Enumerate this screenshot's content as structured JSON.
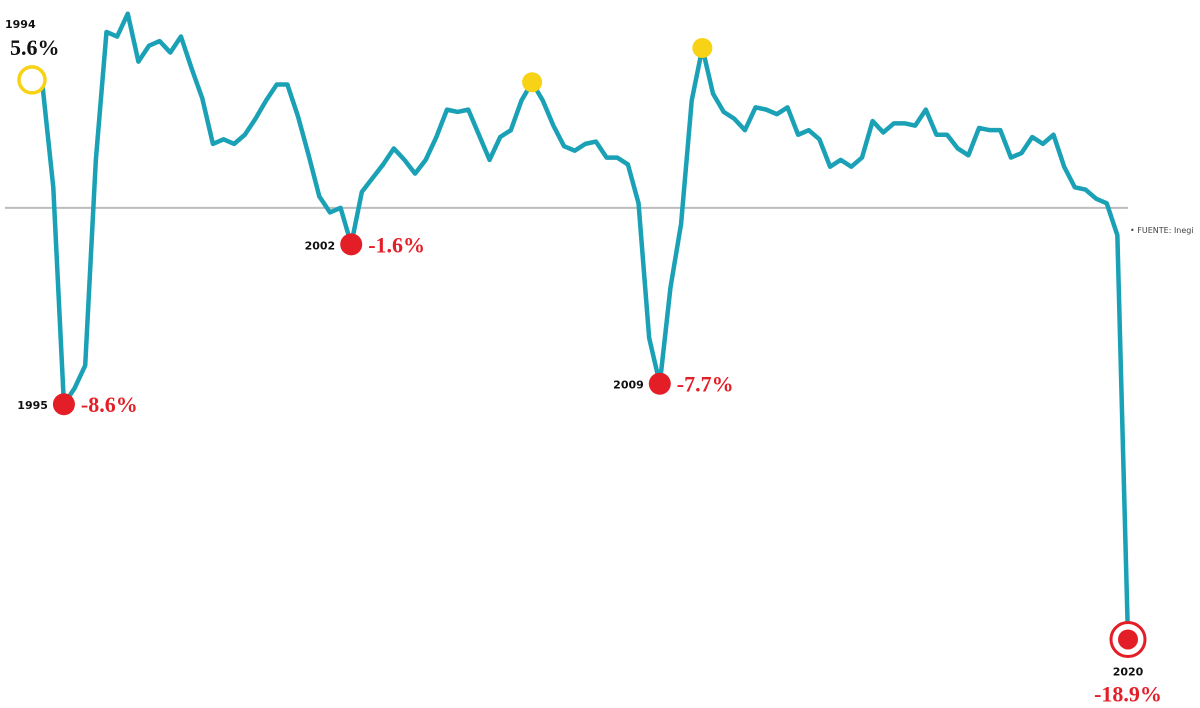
{
  "chart_data": {
    "type": "line",
    "source": "• FUENTE: Inegi",
    "categories": [
      "1994",
      null,
      null,
      "1995",
      null,
      null,
      null,
      null,
      null,
      null,
      null,
      null,
      null,
      null,
      null,
      null,
      null,
      null,
      null,
      null,
      null,
      null,
      null,
      null,
      null,
      null,
      null,
      null,
      null,
      null,
      "2002",
      null,
      null,
      null,
      null,
      null,
      null,
      null,
      null,
      null,
      null,
      null,
      null,
      null,
      null,
      null,
      null,
      null,
      null,
      null,
      null,
      null,
      null,
      null,
      null,
      null,
      null,
      null,
      null,
      "2009",
      null,
      null,
      null,
      null,
      null,
      null,
      null,
      null,
      null,
      null,
      null,
      null,
      null,
      null,
      null,
      null,
      null,
      null,
      null,
      null,
      null,
      null,
      null,
      null,
      null,
      null,
      null,
      null,
      null,
      null,
      null,
      null,
      null,
      null,
      null,
      null,
      null,
      null,
      null,
      null,
      null,
      null,
      null,
      "2020"
    ],
    "values": [
      5.6,
      5.3,
      0.9,
      -8.6,
      -7.9,
      -6.9,
      2.1,
      7.7,
      7.5,
      8.5,
      6.4,
      7.1,
      7.3,
      6.8,
      7.5,
      6.1,
      4.8,
      2.8,
      3.0,
      2.8,
      3.2,
      3.9,
      4.7,
      5.4,
      5.4,
      4.0,
      2.3,
      0.5,
      -0.2,
      0.0,
      -1.6,
      0.7,
      1.3,
      1.9,
      2.6,
      2.1,
      1.5,
      2.1,
      3.1,
      4.3,
      4.2,
      4.3,
      3.2,
      2.1,
      3.1,
      3.4,
      4.7,
      5.5,
      4.7,
      3.6,
      2.7,
      2.5,
      2.8,
      2.9,
      2.2,
      2.2,
      1.9,
      0.2,
      -5.7,
      -7.7,
      -3.5,
      -0.7,
      4.7,
      7.0,
      5.0,
      4.2,
      3.9,
      3.4,
      4.4,
      4.3,
      4.1,
      4.4,
      3.2,
      3.4,
      3.0,
      1.8,
      2.1,
      1.8,
      2.2,
      3.8,
      3.3,
      3.7,
      3.7,
      3.6,
      4.3,
      3.2,
      3.2,
      2.6,
      2.3,
      3.5,
      3.4,
      3.4,
      2.2,
      2.4,
      3.1,
      2.8,
      3.2,
      1.8,
      0.9,
      0.8,
      0.4,
      0.2,
      -1.2,
      -18.9
    ],
    "value_labels": [
      "5.6%",
      null,
      null,
      "-8.6%",
      null,
      null,
      null,
      null,
      null,
      null,
      null,
      null,
      null,
      null,
      null,
      null,
      null,
      null,
      null,
      null,
      null,
      null,
      null,
      null,
      null,
      null,
      null,
      null,
      null,
      null,
      "-1.6%",
      null,
      null,
      null,
      null,
      null,
      null,
      null,
      null,
      null,
      null,
      null,
      null,
      null,
      null,
      null,
      null,
      null,
      null,
      null,
      null,
      null,
      null,
      null,
      null,
      null,
      null,
      null,
      null,
      "-7.7%",
      null,
      null,
      null,
      null,
      null,
      null,
      null,
      null,
      null,
      null,
      null,
      null,
      null,
      null,
      null,
      null,
      null,
      null,
      null,
      null,
      null,
      null,
      null,
      null,
      null,
      null,
      null,
      null,
      null,
      null,
      null,
      null,
      null,
      null,
      null,
      null,
      null,
      null,
      null,
      null,
      null,
      null,
      null,
      "-18.9%"
    ],
    "highlight_points": [
      47,
      63
    ],
    "color": "#1ba1b6",
    "low_color": "#e41e26",
    "high_color": "#f8d215",
    "zero_line_color": "#bdbdbd",
    "ylim": [
      -21.9,
      9.1
    ]
  }
}
